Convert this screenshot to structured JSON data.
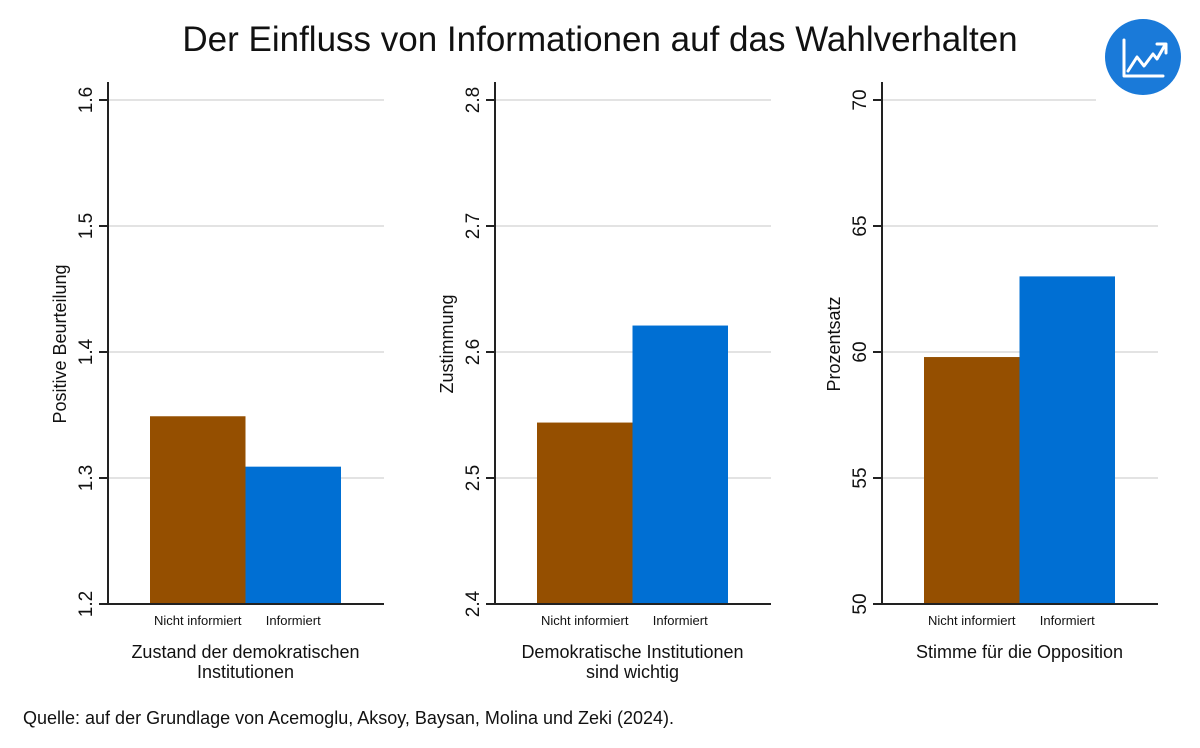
{
  "header": {
    "title": "Der Einfluss von Informationen auf das Wahlverhalten",
    "icon": "chart-trend-up-icon",
    "icon_color": "#1a7ad9"
  },
  "footer": {
    "source": "Quelle: auf der Grundlage von Acemoglu, Aksoy, Baysan, Molina und Zeki (2024)."
  },
  "colors": {
    "nicht_informiert": "#954f00",
    "informiert": "#006fd3",
    "gridline": "#e3e3e3",
    "axis": "#222222"
  },
  "chart_data": [
    {
      "type": "bar",
      "title": "",
      "categories": [
        "Nicht informiert",
        "Informiert"
      ],
      "values": [
        1.349,
        1.309
      ],
      "ylabel": "Positive Beurteilung",
      "xlabel": [
        "Zustand der demokratischen",
        "Institutionen"
      ],
      "ylim": [
        1.2,
        1.6
      ],
      "yticks": [
        1.2,
        1.3,
        1.4,
        1.5,
        1.6
      ],
      "ytick_labels": [
        "1.2",
        "1.3",
        "1.4",
        "1.5",
        "1.6"
      ],
      "grid": true,
      "legend": "none"
    },
    {
      "type": "bar",
      "title": "",
      "categories": [
        "Nicht informiert",
        "Informiert"
      ],
      "values": [
        2.544,
        2.621
      ],
      "ylabel": "Zustimmung",
      "xlabel": [
        "Demokratische Institutionen",
        "sind wichtig"
      ],
      "ylim": [
        2.4,
        2.8
      ],
      "yticks": [
        2.4,
        2.5,
        2.6,
        2.7,
        2.8
      ],
      "ytick_labels": [
        "2.4",
        "2.5",
        "2.6",
        "2.7",
        "2.8"
      ],
      "grid": true,
      "legend": "none"
    },
    {
      "type": "bar",
      "title": "",
      "categories": [
        "Nicht informiert",
        "Informiert"
      ],
      "values": [
        59.8,
        63.0
      ],
      "ylabel": "Prozentsatz",
      "xlabel": [
        "Stimme für die Opposition"
      ],
      "ylim": [
        50,
        70
      ],
      "yticks": [
        50,
        55,
        60,
        65,
        70
      ],
      "ytick_labels": [
        "50",
        "55",
        "60",
        "65",
        "70"
      ],
      "grid": true,
      "legend": "none"
    }
  ]
}
